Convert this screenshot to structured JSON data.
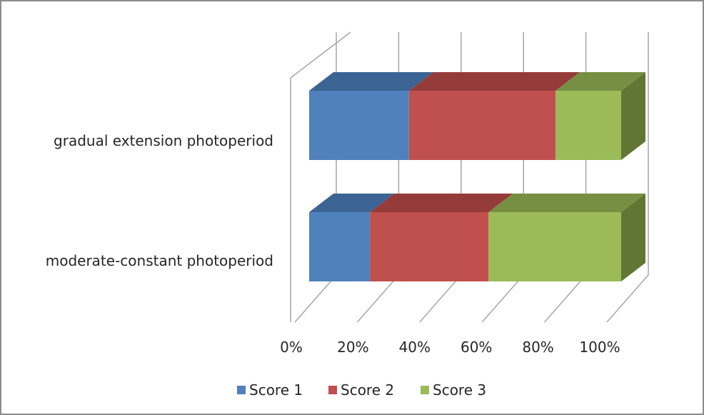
{
  "chart_data": {
    "type": "bar",
    "orientation": "horizontal",
    "stacking": "percent",
    "three_d": true,
    "title": "",
    "xlabel": "",
    "ylabel": "",
    "categories": [
      "moderate-constant photoperiod",
      "gradual extension photoperiod"
    ],
    "series": [
      {
        "name": "Score 1",
        "values": [
          19.5,
          32
        ],
        "color": "#4f81bd",
        "top_color": "#3b6494",
        "side_color": "#2f4f75"
      },
      {
        "name": "Score 2",
        "values": [
          38,
          47
        ],
        "color": "#c0504d",
        "top_color": "#953b39",
        "side_color": "#7a302e"
      },
      {
        "name": "Score 3",
        "values": [
          42.5,
          21
        ],
        "color": "#9bbb59",
        "top_color": "#768f43",
        "side_color": "#627634"
      }
    ],
    "xlim": [
      0,
      100
    ],
    "x_ticks": [
      "0%",
      "20%",
      "40%",
      "60%",
      "80%",
      "100%"
    ],
    "grid": true,
    "legend_position": "bottom",
    "colors": {
      "wall_line": "#a6a6a6",
      "frame": "#8c8c8c",
      "text": "#262626"
    }
  }
}
